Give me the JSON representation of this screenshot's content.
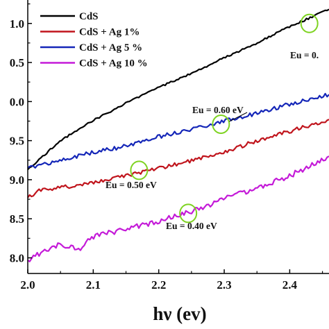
{
  "chart_data": {
    "type": "line",
    "xlabel": "hν (ev)",
    "ylabel": "",
    "xlim": [
      2.0,
      2.46
    ],
    "ylim": [
      7.8,
      11.3
    ],
    "xticks": [
      "2.0",
      "2.1",
      "2.2",
      "2.3",
      "2.4"
    ],
    "yticks": [
      "8.0",
      "8.5",
      "9.0",
      "9.5",
      "0.0",
      "0.5",
      "1.0"
    ],
    "legend_position": "top-left",
    "series": [
      {
        "name": "CdS",
        "color": "#000000",
        "x": [
          2.0,
          2.05,
          2.1,
          2.15,
          2.2,
          2.25,
          2.3,
          2.35,
          2.4,
          2.46
        ],
        "y": [
          9.13,
          9.5,
          9.76,
          9.98,
          10.18,
          10.36,
          10.56,
          10.75,
          10.96,
          11.18
        ]
      },
      {
        "name": "CdS + Ag 1%",
        "color": "#c0141c",
        "x": [
          2.0,
          2.02,
          2.05,
          2.1,
          2.15,
          2.2,
          2.25,
          2.3,
          2.35,
          2.4,
          2.46
        ],
        "y": [
          8.77,
          8.87,
          8.9,
          8.96,
          9.05,
          9.15,
          9.24,
          9.35,
          9.5,
          9.62,
          9.77
        ]
      },
      {
        "name": "CdS + Ag 5 %",
        "color": "#1426b8",
        "x": [
          2.0,
          2.05,
          2.1,
          2.15,
          2.2,
          2.25,
          2.3,
          2.35,
          2.4,
          2.46
        ],
        "y": [
          9.15,
          9.25,
          9.35,
          9.43,
          9.55,
          9.65,
          9.75,
          9.85,
          9.97,
          10.09
        ]
      },
      {
        "name": "CdS + Ag 10 %",
        "color": "#c41ad8",
        "x": [
          2.0,
          2.03,
          2.05,
          2.08,
          2.1,
          2.15,
          2.2,
          2.25,
          2.3,
          2.35,
          2.4,
          2.46
        ],
        "y": [
          7.97,
          8.1,
          8.17,
          8.12,
          8.27,
          8.37,
          8.47,
          8.6,
          8.75,
          8.9,
          9.05,
          9.3
        ]
      }
    ],
    "annotations": [
      {
        "text": "Eu = 0.",
        "x": 2.43,
        "y": 11.0,
        "marker_color": "#7ed321"
      },
      {
        "text": "Eu = 0.60 eV",
        "x": 2.295,
        "y": 9.71,
        "marker_color": "#7ed321"
      },
      {
        "text": "Eu = 0.50 eV",
        "x": 2.17,
        "y": 9.12,
        "marker_color": "#7ed321"
      },
      {
        "text": "Eu = 0.40 eV",
        "x": 2.245,
        "y": 8.57,
        "marker_color": "#7ed321"
      }
    ]
  }
}
